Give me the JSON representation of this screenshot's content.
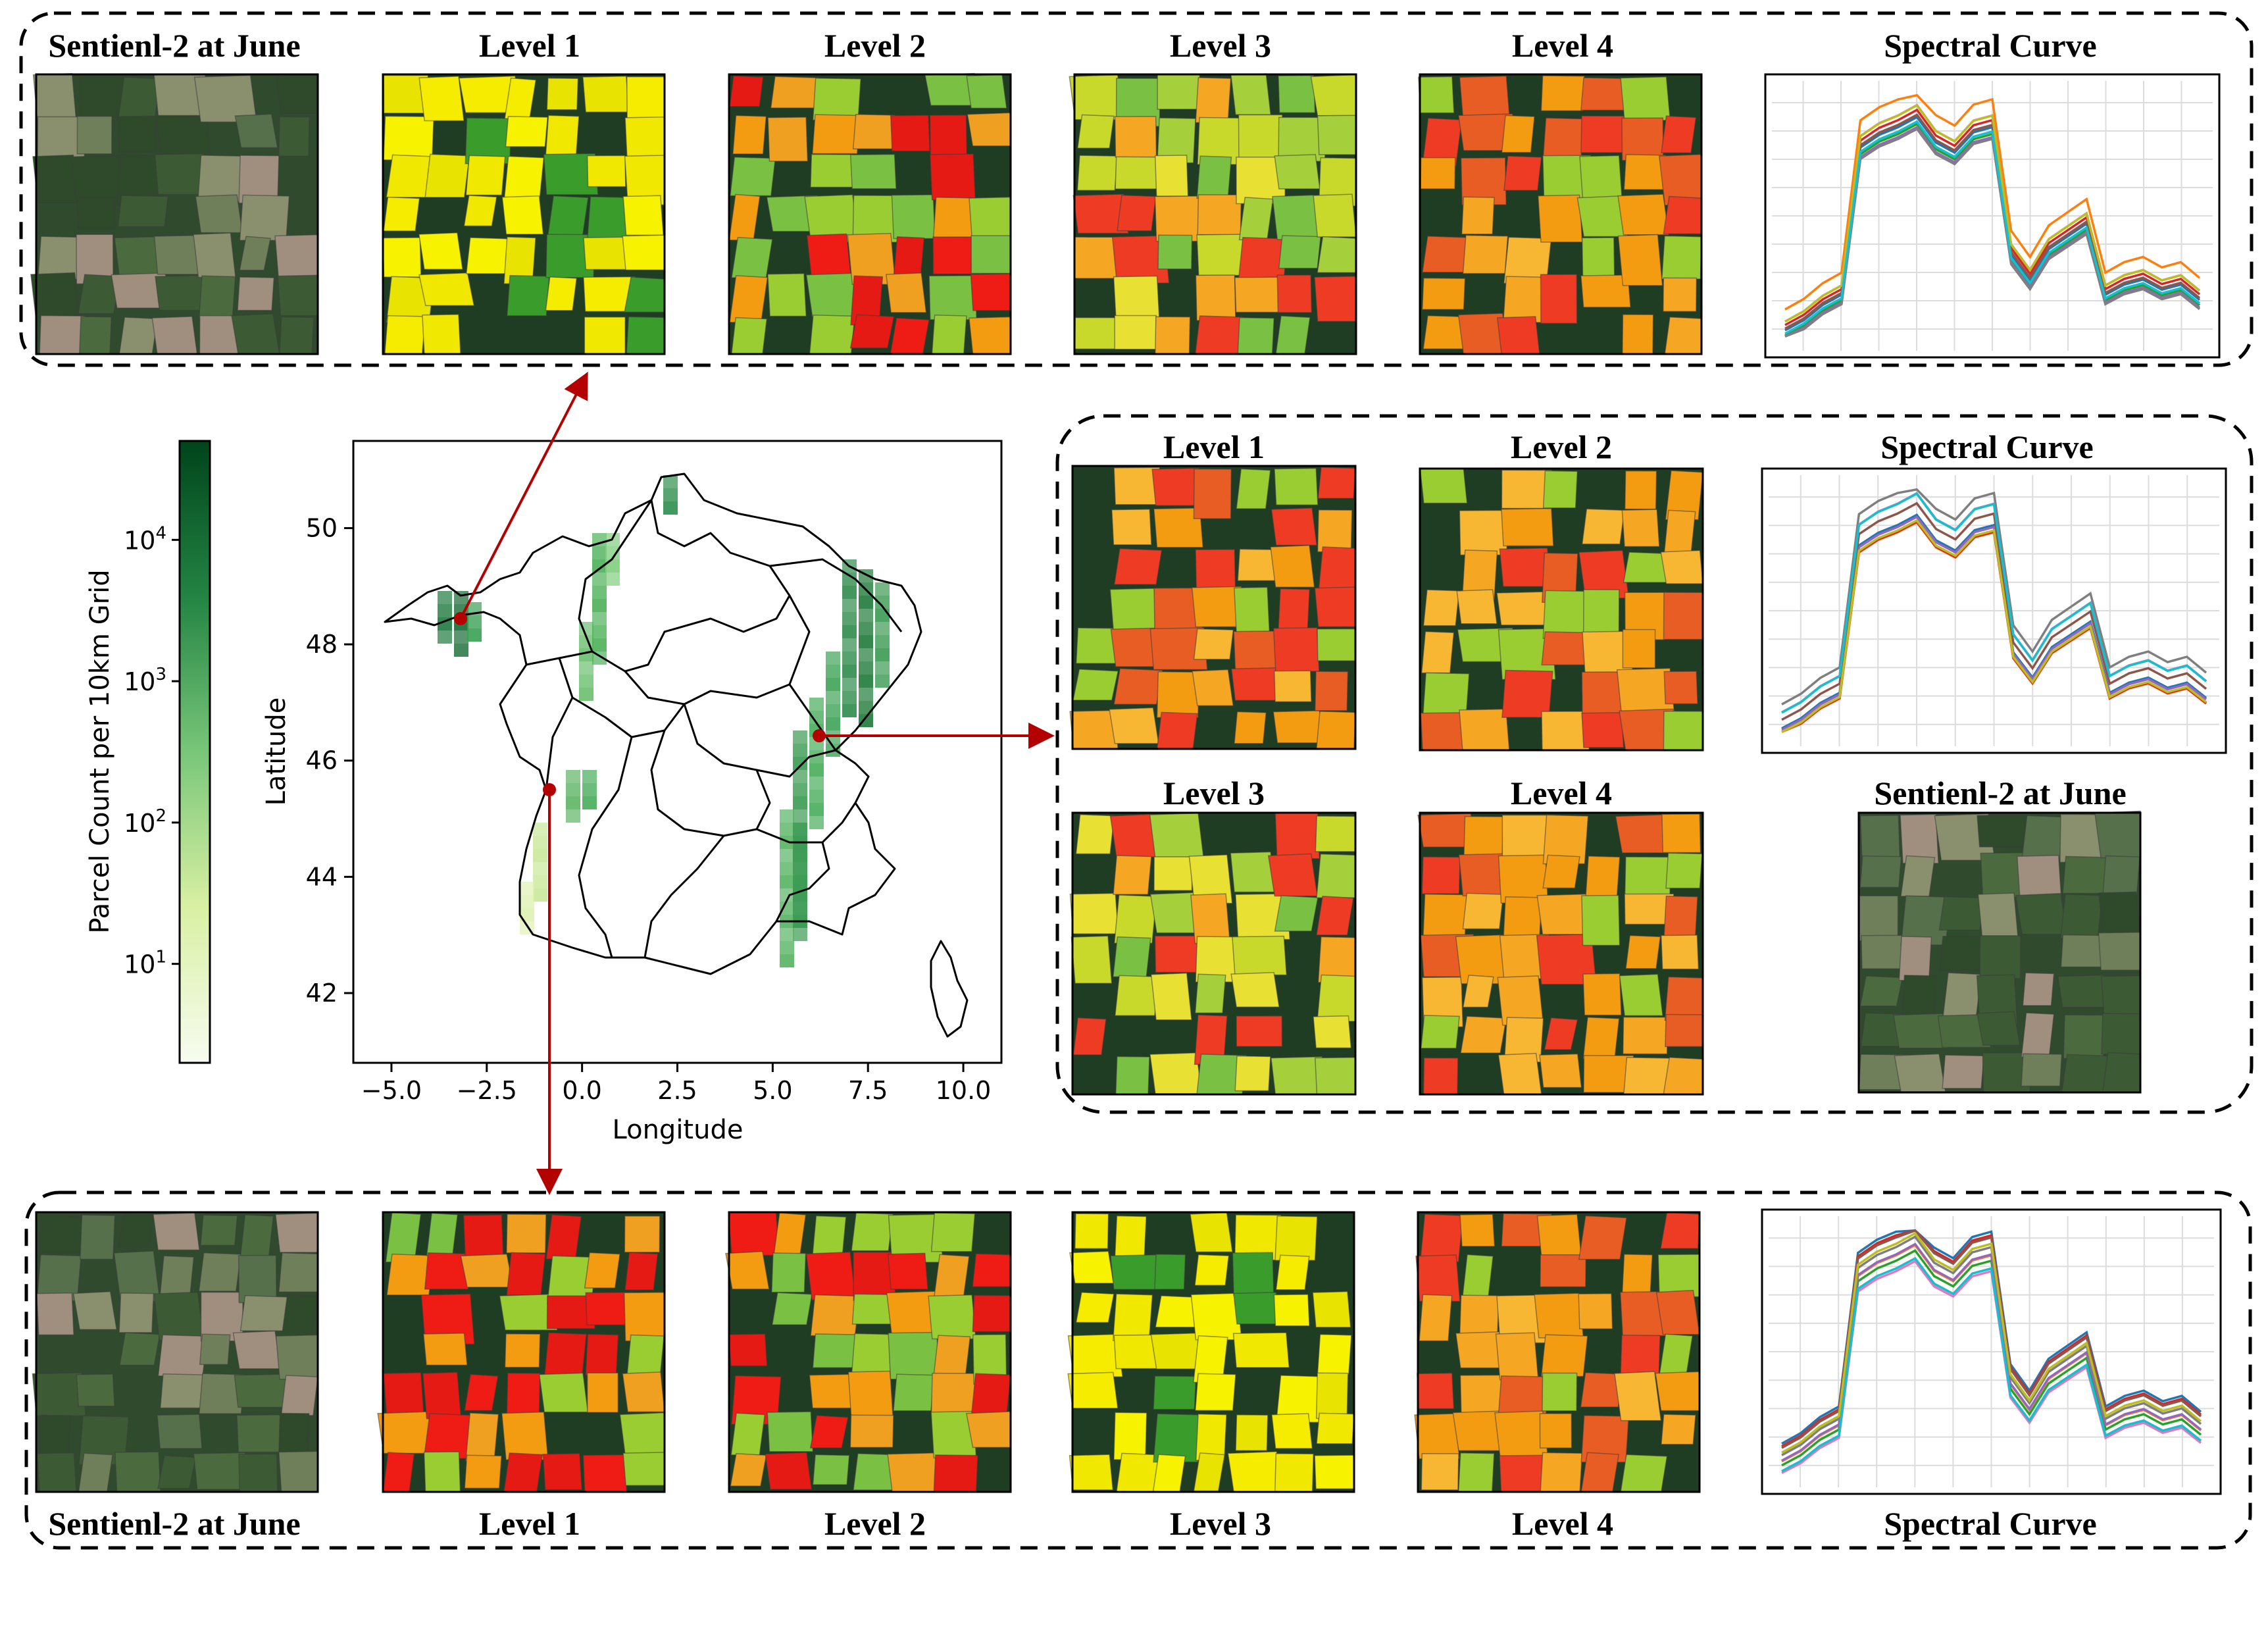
{
  "labels": {
    "s2": "Sentienl-2 at June",
    "level1": "Level 1",
    "level2": "Level 2",
    "level3": "Level 3",
    "level4": "Level 4",
    "spectral": "Spectral Curve"
  },
  "map": {
    "xlabel": "Longitude",
    "ylabel": "Latitude",
    "xticks": [
      "−5.0",
      "−2.5",
      "0.0",
      "2.5",
      "5.0",
      "7.5",
      "10.0"
    ],
    "yticks": [
      "42",
      "44",
      "46",
      "48",
      "50"
    ],
    "colorbar_label": "Parcel Count per 10km Grid",
    "colorbar_ticks": [
      {
        "base": "10",
        "exp": "1"
      },
      {
        "base": "10",
        "exp": "2"
      },
      {
        "base": "10",
        "exp": "3"
      },
      {
        "base": "10",
        "exp": "4"
      }
    ],
    "xlim": [
      -6,
      11
    ],
    "ylim": [
      40.8,
      51.5
    ],
    "colors": {
      "low": "#f7fcf0",
      "high": "#00441b",
      "arrow": "#b30000"
    }
  },
  "palettes": {
    "level1": [
      "#f5ec00",
      "#f7f200",
      "#3a9c2b",
      "#f0e800",
      "#e8e300"
    ],
    "level2": [
      "#ee1c14",
      "#f39c12",
      "#7ac143",
      "#e51a15",
      "#f0a020",
      "#9acd32"
    ],
    "level3": [
      "#7ac143",
      "#c8d92b",
      "#f5a623",
      "#ee3b24",
      "#a5cf3b",
      "#e8e032"
    ],
    "level4": [
      "#f39c12",
      "#ee3b24",
      "#f7b733",
      "#e85d24",
      "#9acd32",
      "#f5a623"
    ],
    "satellite": [
      "#3c5a34",
      "#55704a",
      "#8a8f6e",
      "#4b6b3f",
      "#a08f7f",
      "#2e4a2a",
      "#6e7f5a"
    ]
  }
}
